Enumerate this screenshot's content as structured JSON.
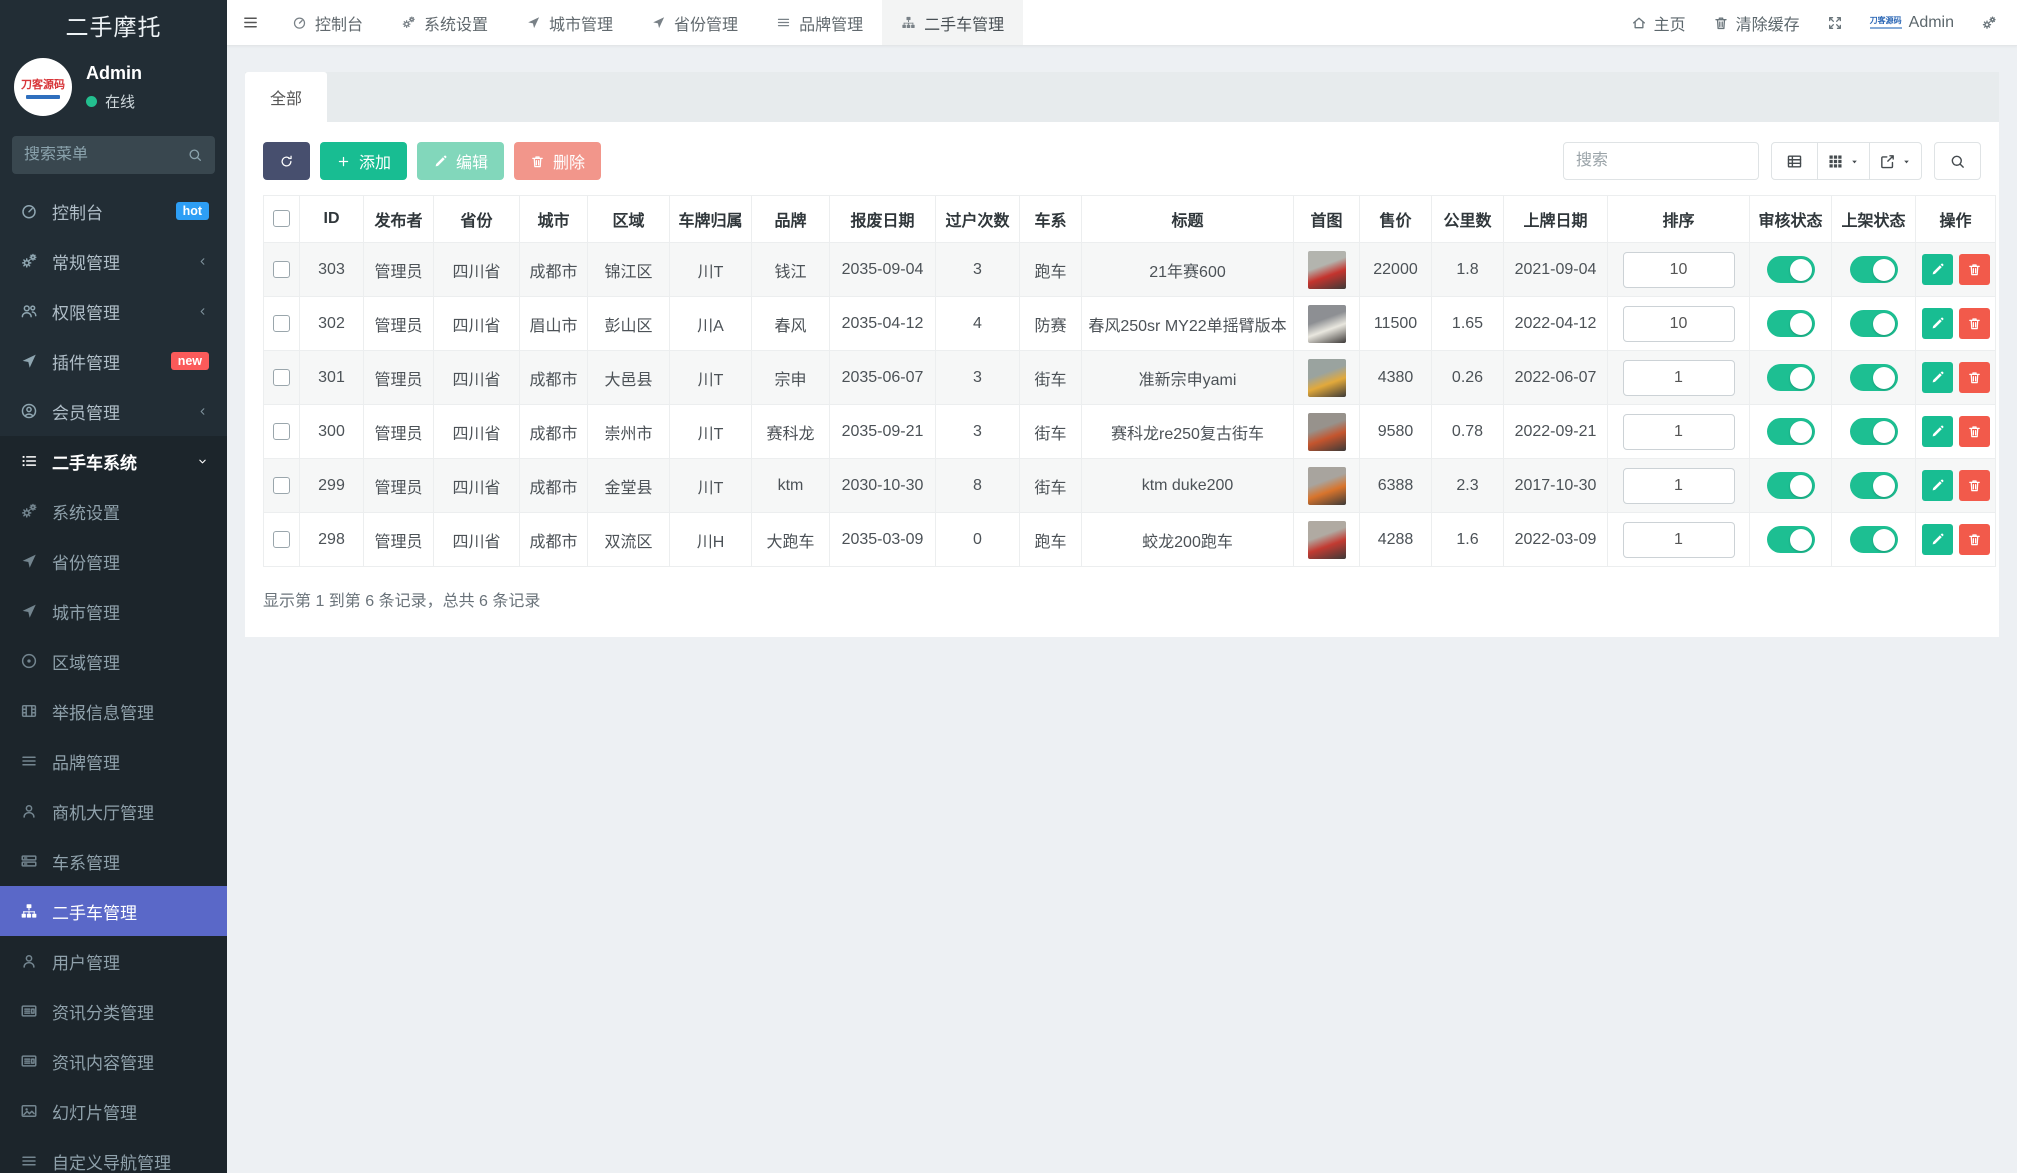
{
  "brand": {
    "title": "二手摩托"
  },
  "user_panel": {
    "name": "Admin",
    "status": "在线",
    "avatar_text": "刀客源码"
  },
  "sidebar": {
    "search_placeholder": "搜索菜单",
    "items": [
      {
        "label": "控制台",
        "icon": "gauge",
        "badge": "hot",
        "badge_color": "#2d9ef5"
      },
      {
        "label": "常规管理",
        "icon": "gears",
        "arrow": "left"
      },
      {
        "label": "权限管理",
        "icon": "users",
        "arrow": "left"
      },
      {
        "label": "插件管理",
        "icon": "send",
        "badge": "new",
        "badge_color": "#fb5a5a"
      },
      {
        "label": "会员管理",
        "icon": "user-circle",
        "arrow": "left"
      },
      {
        "label": "二手车系统",
        "icon": "list",
        "arrow": "down",
        "open": true
      }
    ],
    "subitems": [
      {
        "label": "系统设置",
        "icon": "gears"
      },
      {
        "label": "省份管理",
        "icon": "send"
      },
      {
        "label": "城市管理",
        "icon": "send"
      },
      {
        "label": "区域管理",
        "icon": "compass"
      },
      {
        "label": "举报信息管理",
        "icon": "film"
      },
      {
        "label": "品牌管理",
        "icon": "bars"
      },
      {
        "label": "商机大厅管理",
        "icon": "user"
      },
      {
        "label": "车系管理",
        "icon": "list-alt"
      },
      {
        "label": "二手车管理",
        "icon": "sitemap",
        "active": true
      },
      {
        "label": "用户管理",
        "icon": "user"
      },
      {
        "label": "资讯分类管理",
        "icon": "news"
      },
      {
        "label": "资讯内容管理",
        "icon": "news"
      },
      {
        "label": "幻灯片管理",
        "icon": "image"
      },
      {
        "label": "自定义导航管理",
        "icon": "bars"
      }
    ]
  },
  "topbar": {
    "tabs": [
      {
        "label": "控制台",
        "icon": "gauge"
      },
      {
        "label": "系统设置",
        "icon": "gears"
      },
      {
        "label": "城市管理",
        "icon": "send"
      },
      {
        "label": "省份管理",
        "icon": "send"
      },
      {
        "label": "品牌管理",
        "icon": "bars"
      },
      {
        "label": "二手车管理",
        "icon": "sitemap",
        "active": true
      }
    ],
    "right": {
      "home": "主页",
      "clear_cache": "清除缓存",
      "username": "Admin",
      "logo_text": "刀客源码"
    }
  },
  "panel": {
    "tab_all": "全部"
  },
  "toolbar": {
    "add_label": "添加",
    "edit_label": "编辑",
    "delete_label": "删除",
    "search_placeholder": "搜索"
  },
  "table": {
    "columns": [
      "ID",
      "发布者",
      "省份",
      "城市",
      "区域",
      "车牌归属",
      "品牌",
      "报废日期",
      "过户次数",
      "车系",
      "标题",
      "首图",
      "售价",
      "公里数",
      "上牌日期",
      "排序",
      "审核状态",
      "上架状态",
      "操作"
    ],
    "rows": [
      {
        "id": "303",
        "publisher": "管理员",
        "province": "四川省",
        "city": "成都市",
        "district": "锦江区",
        "plate": "川T",
        "brand": "钱江",
        "scrap_date": "2035-09-04",
        "transfer_count": "3",
        "series": "跑车",
        "title": "21年赛600",
        "thumb": [
          "#b3b4ae",
          "#c4342e"
        ],
        "price": "22000",
        "mileage": "1.8",
        "reg_date": "2021-09-04",
        "sort": "10",
        "audit_on": true,
        "listed_on": true
      },
      {
        "id": "302",
        "publisher": "管理员",
        "province": "四川省",
        "city": "眉山市",
        "district": "彭山区",
        "plate": "川A",
        "brand": "春风",
        "scrap_date": "2035-04-12",
        "transfer_count": "4",
        "series": "防赛",
        "title": "春风250sr MY22单摇臂版本",
        "thumb": [
          "#8d8f93",
          "#e9e7df"
        ],
        "price": "11500",
        "mileage": "1.65",
        "reg_date": "2022-04-12",
        "sort": "10",
        "audit_on": true,
        "listed_on": true
      },
      {
        "id": "301",
        "publisher": "管理员",
        "province": "四川省",
        "city": "成都市",
        "district": "大邑县",
        "plate": "川T",
        "brand": "宗申",
        "scrap_date": "2035-06-07",
        "transfer_count": "3",
        "series": "街车",
        "title": "准新宗申yami",
        "thumb": [
          "#9aa39f",
          "#e2a93b"
        ],
        "price": "4380",
        "mileage": "0.26",
        "reg_date": "2022-06-07",
        "sort": "1",
        "audit_on": true,
        "listed_on": true
      },
      {
        "id": "300",
        "publisher": "管理员",
        "province": "四川省",
        "city": "成都市",
        "district": "崇州市",
        "plate": "川T",
        "brand": "赛科龙",
        "scrap_date": "2035-09-21",
        "transfer_count": "3",
        "series": "街车",
        "title": "赛科龙re250复古街车",
        "thumb": [
          "#97928c",
          "#c4552e"
        ],
        "price": "9580",
        "mileage": "0.78",
        "reg_date": "2022-09-21",
        "sort": "1",
        "audit_on": true,
        "listed_on": true
      },
      {
        "id": "299",
        "publisher": "管理员",
        "province": "四川省",
        "city": "成都市",
        "district": "金堂县",
        "plate": "川T",
        "brand": "ktm",
        "scrap_date": "2030-10-30",
        "transfer_count": "8",
        "series": "街车",
        "title": "ktm duke200",
        "thumb": [
          "#a8a49e",
          "#d8742c"
        ],
        "price": "6388",
        "mileage": "2.3",
        "reg_date": "2017-10-30",
        "sort": "1",
        "audit_on": true,
        "listed_on": true
      },
      {
        "id": "298",
        "publisher": "管理员",
        "province": "四川省",
        "city": "成都市",
        "district": "双流区",
        "plate": "川H",
        "brand": "大跑车",
        "scrap_date": "2035-03-09",
        "transfer_count": "0",
        "series": "跑车",
        "title": "蛟龙200跑车",
        "thumb": [
          "#b0aaa2",
          "#c23b32"
        ],
        "price": "4288",
        "mileage": "1.6",
        "reg_date": "2022-03-09",
        "sort": "1",
        "audit_on": true,
        "listed_on": true
      }
    ],
    "footer": "显示第 1 到第 6 条记录，总共 6 条记录"
  },
  "colors": {
    "accent_green": "#18bd92",
    "muted_green": "#82d7bb",
    "salmon": "#f2968b",
    "bright_red": "#f25a4b",
    "dark_button": "#474f6e",
    "active_item_blue": "#5a68c8",
    "toggle_green": "#1dbf92",
    "online_green": "#23bf8f"
  }
}
